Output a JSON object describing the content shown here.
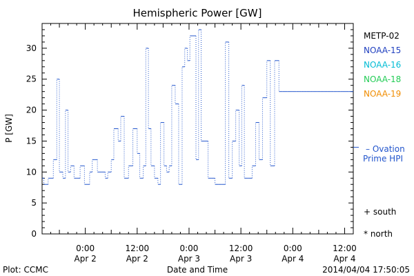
{
  "chart_data": {
    "type": "line",
    "title": "Hemispheric Power [GW]",
    "ylabel": "P [GW]",
    "xlabel": "Date and Time",
    "ylim": [
      0,
      34
    ],
    "xlim_hours": [
      -5,
      31
    ],
    "yticks": [
      0,
      5,
      10,
      15,
      20,
      25,
      30
    ],
    "xticks": [
      {
        "t": 0,
        "time": "0:00",
        "date": "Apr 2"
      },
      {
        "t": 6,
        "time": "12:00",
        "date": "Apr 2"
      },
      {
        "t": 12,
        "time": "0:00",
        "date": "Apr 3"
      },
      {
        "t": 18,
        "time": "12:00",
        "date": "Apr 3"
      },
      {
        "t": 24,
        "time": "0:00",
        "date": "Apr 4"
      },
      {
        "t": 30,
        "time": "12:00",
        "date": "Apr 4"
      }
    ],
    "legend": [
      {
        "name": "METP-02",
        "color": "#000000"
      },
      {
        "name": "NOAA-15",
        "color": "#1f3fbf"
      },
      {
        "name": "NOAA-16",
        "color": "#00bcd4"
      },
      {
        "name": "NOAA-18",
        "color": "#22cc55"
      },
      {
        "name": "NOAA-19",
        "color": "#f08c00"
      }
    ],
    "ovation": {
      "label1": "– Ovation",
      "label2": "Prime HPI",
      "value": 14,
      "color": "#2255cc"
    },
    "markers": {
      "south": "+ south",
      "north": "* north"
    },
    "series": [
      {
        "color": "#2255cc",
        "x": [
          -5.0,
          -4.8,
          -4.3,
          -3.7,
          -3.3,
          -3.0,
          -2.6,
          -2.3,
          -2.0,
          -1.7,
          -1.3,
          -1.0,
          -0.6,
          -0.1,
          0.5,
          0.8,
          1.1,
          1.4,
          1.9,
          2.3,
          2.6,
          3.0,
          3.3,
          3.8,
          4.1,
          4.5,
          5.0,
          5.5,
          6.0,
          6.3,
          6.7,
          7.0,
          7.3,
          7.6,
          8.0,
          8.4,
          8.7,
          9.1,
          9.4,
          9.7,
          10.0,
          10.4,
          10.8,
          11.2,
          11.5,
          11.8,
          12.1,
          12.4,
          12.8,
          13.1,
          13.4,
          13.8,
          14.2,
          14.6,
          15.0,
          15.4,
          15.8,
          16.2,
          16.6,
          17.0,
          17.4,
          17.8,
          18.1,
          18.4,
          18.8,
          19.3,
          19.7,
          20.1,
          20.5,
          21.0,
          21.4,
          21.9,
          22.4,
          22.8,
          23.4,
          23.9,
          24.4,
          24.7,
          25.0,
          25.3,
          25.6,
          26.0,
          26.3,
          26.8,
          27.2,
          27.6,
          28.0,
          28.4,
          28.7,
          29.1,
          29.5,
          29.8,
          30.2,
          30.5,
          30.8,
          31.0
        ],
        "y": [
          9,
          8,
          9,
          12,
          25,
          10,
          9,
          20,
          10,
          11,
          9,
          9,
          11,
          8,
          10,
          12,
          12,
          10,
          10,
          9,
          10,
          12,
          17,
          15,
          19,
          9,
          11,
          17,
          13,
          9,
          11,
          30,
          17,
          11,
          9,
          8,
          18,
          11,
          10,
          11,
          24,
          21,
          8,
          27,
          30,
          28,
          32,
          32,
          12,
          33,
          15,
          15,
          9,
          9,
          8,
          8,
          8,
          31,
          9,
          15,
          20,
          11,
          24,
          9,
          9,
          11,
          18,
          12,
          22,
          28,
          11,
          28,
          23,
          23,
          23,
          23,
          23,
          23,
          23,
          23,
          23,
          23,
          23,
          23,
          23,
          23,
          23,
          23,
          23,
          23,
          23,
          23,
          23,
          23,
          23,
          23
        ]
      }
    ],
    "footer": {
      "left": "Plot: CCMC",
      "right": "2014/04/04 17:50:05"
    }
  }
}
